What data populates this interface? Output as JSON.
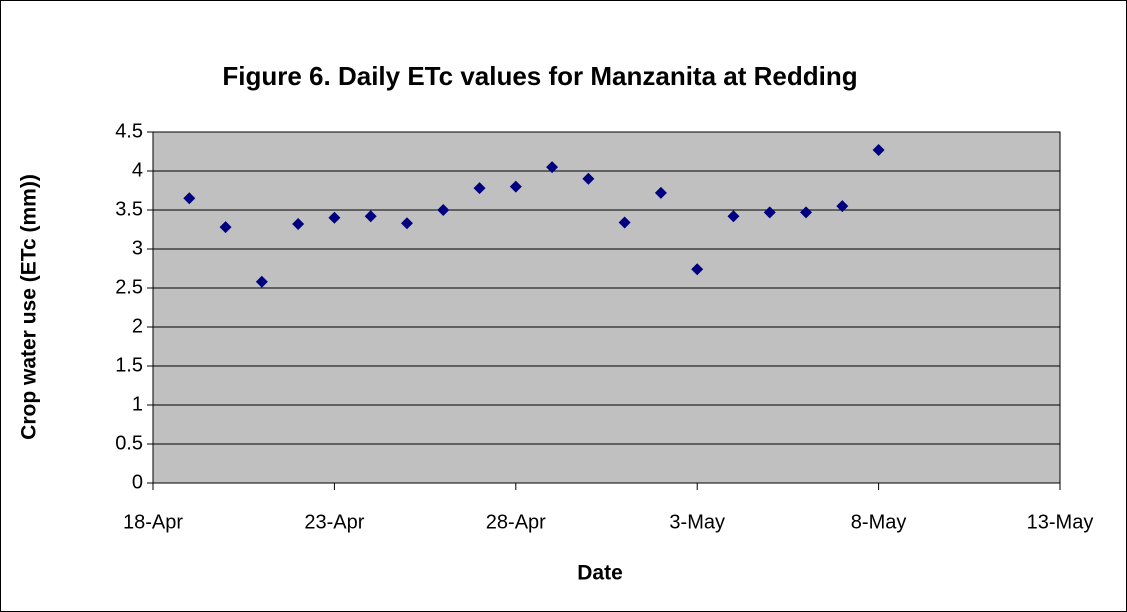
{
  "chart_data": {
    "type": "scatter",
    "title": "Figure 6. Daily ETc values for Manzanita at Redding",
    "x_label": "Date",
    "y_label": "Crop water use (ETc (mm))",
    "x": [
      "19-Apr",
      "20-Apr",
      "21-Apr",
      "22-Apr",
      "23-Apr",
      "24-Apr",
      "25-Apr",
      "26-Apr",
      "27-Apr",
      "28-Apr",
      "29-Apr",
      "30-Apr",
      "1-May",
      "2-May",
      "3-May",
      "4-May",
      "5-May",
      "6-May",
      "7-May",
      "8-May"
    ],
    "values": [
      3.65,
      3.28,
      2.58,
      3.32,
      3.4,
      3.42,
      3.33,
      3.5,
      3.78,
      3.8,
      4.05,
      3.9,
      3.34,
      3.72,
      2.74,
      3.42,
      3.47,
      3.47,
      3.55,
      4.27
    ],
    "color": "#000080",
    "xlim": [
      "18-Apr",
      "13-May"
    ],
    "xticks": [
      "18-Apr",
      "23-Apr",
      "28-Apr",
      "3-May",
      "8-May",
      "13-May"
    ],
    "ylim": [
      0,
      4.5
    ],
    "yticks": [
      0,
      0.5,
      1,
      1.5,
      2,
      2.5,
      3,
      3.5,
      4,
      4.5
    ],
    "grid": true,
    "plot_background": "#c0c0c0"
  }
}
